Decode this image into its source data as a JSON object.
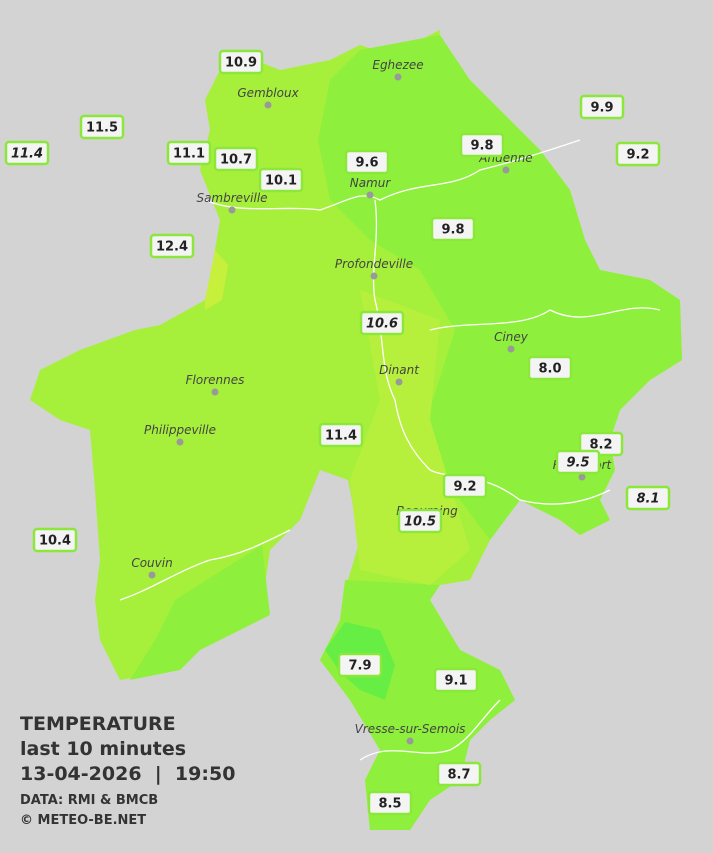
{
  "header": {
    "title": "TEMPERATURE",
    "subtitle": "last 10 minutes",
    "datetime": "13-04-2026  |  19:50"
  },
  "credits": [
    "DATA: RMI & BMCB",
    "© METEO-BE.NET"
  ],
  "cities": [
    "Eghezee",
    "Gembloux",
    "Andenne",
    "Namur",
    "Sambreville",
    "Profondeville",
    "Ciney",
    "Dinant",
    "Florennes",
    "Philippeville",
    "Rochefort",
    "Beauraing",
    "Couvin",
    "Vresse-sur-Semois"
  ],
  "stations": [
    {
      "value": "10.9",
      "italic": false
    },
    {
      "value": "11.5",
      "italic": false
    },
    {
      "value": "11.4",
      "italic": true
    },
    {
      "value": "11.1",
      "italic": false
    },
    {
      "value": "10.7",
      "italic": false
    },
    {
      "value": "10.1",
      "italic": false
    },
    {
      "value": "9.6",
      "italic": false
    },
    {
      "value": "9.8",
      "italic": false
    },
    {
      "value": "9.9",
      "italic": false
    },
    {
      "value": "9.2",
      "italic": false
    },
    {
      "value": "12.4",
      "italic": false
    },
    {
      "value": "9.8",
      "italic": false
    },
    {
      "value": "10.6",
      "italic": true
    },
    {
      "value": "8.0",
      "italic": false
    },
    {
      "value": "11.4",
      "italic": false
    },
    {
      "value": "8.2",
      "italic": false
    },
    {
      "value": "9.5",
      "italic": true
    },
    {
      "value": "8.1",
      "italic": true
    },
    {
      "value": "9.2",
      "italic": false
    },
    {
      "value": "10.5",
      "italic": true
    },
    {
      "value": "10.4",
      "italic": false
    },
    {
      "value": "7.9",
      "italic": false
    },
    {
      "value": "9.1",
      "italic": false
    },
    {
      "value": "8.7",
      "italic": false
    },
    {
      "value": "8.5",
      "italic": false
    }
  ]
}
